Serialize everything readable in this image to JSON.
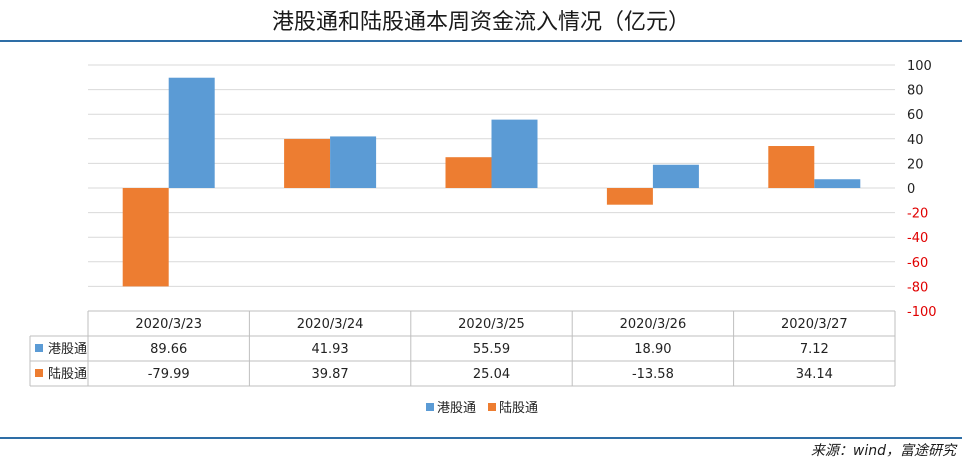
{
  "title": "港股通和陆股通本周资金流入情况（亿元）",
  "source": "来源：wind，富途研究",
  "colors": {
    "hk": "#5b9bd5",
    "lu": "#ed7d31",
    "negative_tick": "#e00000",
    "rule": "#2e6ea6"
  },
  "chart_data": {
    "type": "bar",
    "title": "港股通和陆股通本周资金流入情况（亿元）",
    "categories": [
      "2020/3/23",
      "2020/3/24",
      "2020/3/25",
      "2020/3/26",
      "2020/3/27"
    ],
    "series": [
      {
        "name": "港股通",
        "color": "#5b9bd5",
        "values": [
          89.66,
          41.93,
          55.59,
          18.9,
          7.12
        ],
        "labels": [
          "89.66",
          "41.93",
          "55.59",
          "18.90",
          "7.12"
        ]
      },
      {
        "name": "陆股通",
        "color": "#ed7d31",
        "values": [
          -79.99,
          39.87,
          25.04,
          -13.58,
          34.14
        ],
        "labels": [
          "-79.99",
          "39.87",
          "25.04",
          "-13.58",
          "34.14"
        ]
      }
    ],
    "ylim": [
      -100,
      100
    ],
    "yticks": [
      100,
      80,
      60,
      40,
      20,
      0,
      -20,
      -40,
      -60,
      -80,
      -100
    ],
    "grid": true,
    "legend": "bottom",
    "data_table": true
  }
}
